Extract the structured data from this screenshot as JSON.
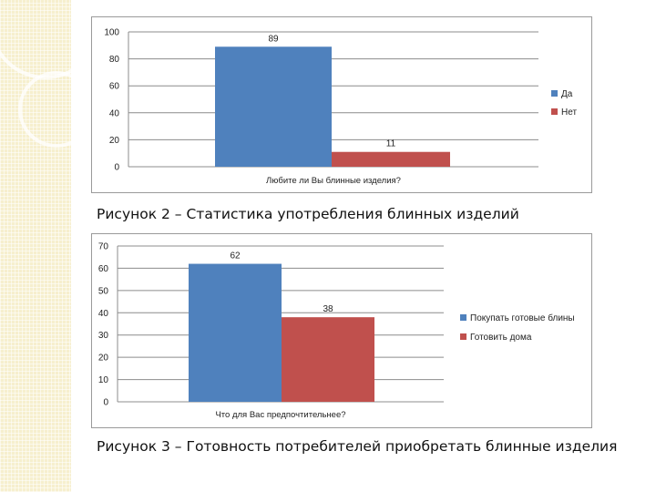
{
  "chart_data": [
    {
      "type": "bar",
      "xlabel": "Любите ли Вы блинные изделия?",
      "series": [
        {
          "name": "Да",
          "values": [
            89
          ],
          "color": "#4f81bd"
        },
        {
          "name": "Нет",
          "values": [
            11
          ],
          "color": "#c0504d"
        }
      ],
      "ylim": [
        0,
        100
      ],
      "yticks": [
        0,
        20,
        40,
        60,
        80,
        100
      ],
      "grid": true,
      "legend": "right"
    },
    {
      "type": "bar",
      "xlabel": "Что для Вас предпочтительнее?",
      "series": [
        {
          "name": "Покупать готовые блины",
          "values": [
            62
          ],
          "color": "#4f81bd"
        },
        {
          "name": "Готовить дома",
          "values": [
            38
          ],
          "color": "#c0504d"
        }
      ],
      "ylim": [
        0,
        70
      ],
      "yticks": [
        0,
        10,
        20,
        30,
        40,
        50,
        60,
        70
      ],
      "grid": true,
      "legend": "right"
    }
  ],
  "captions": {
    "figure2": "Рисунок 2 – Статистика употребления блинных изделий",
    "figure3": "Рисунок 3 – Готовность потребителей приобретать блинные изделия"
  }
}
